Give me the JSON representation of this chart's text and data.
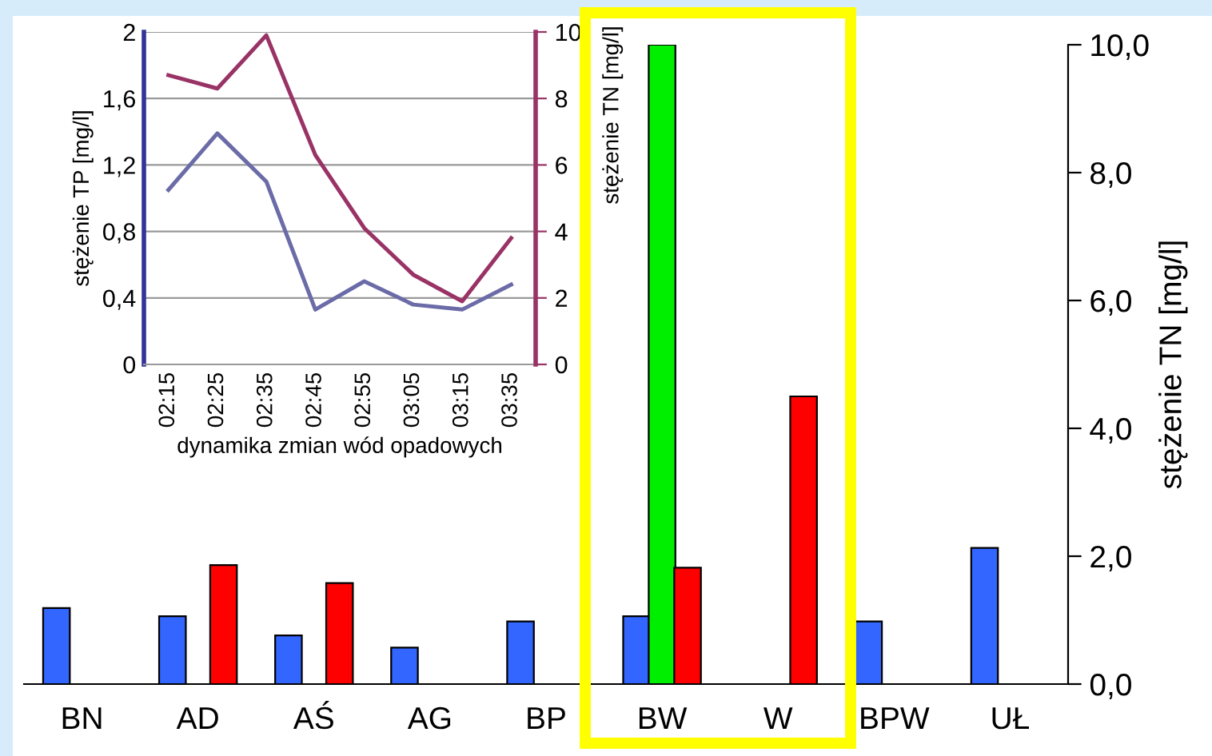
{
  "chart_data": [
    {
      "type": "bar",
      "categories": [
        "BN",
        "AD",
        "AŚ",
        "AG",
        "BP",
        "BW",
        "W",
        "BPW",
        "UŁ"
      ],
      "series": [
        {
          "color": "#3366ff",
          "axis": "y2",
          "values": [
            1.19,
            1.06,
            0.76,
            0.57,
            0.98,
            1.06,
            null,
            0.98,
            2.13
          ]
        },
        {
          "color": "#00ee00",
          "axis": "y2",
          "values": [
            null,
            null,
            null,
            null,
            null,
            10.0,
            null,
            null,
            null
          ]
        },
        {
          "color": "#ff0000",
          "axis": "y2",
          "values": [
            null,
            1.86,
            1.58,
            null,
            null,
            1.82,
            4.5,
            null,
            null
          ]
        }
      ],
      "y2label": "stężenie TN [mg/l]",
      "y2lim": [
        0,
        10
      ],
      "y2ticks": [
        {
          "value": 0,
          "label": "0,0"
        },
        {
          "value": 2,
          "label": "2,0"
        },
        {
          "value": 4,
          "label": "4,0"
        },
        {
          "value": 6,
          "label": "6,0"
        },
        {
          "value": 8,
          "label": "8,0"
        },
        {
          "value": 10,
          "label": "10,0"
        }
      ],
      "grid": false,
      "legend": false
    },
    {
      "type": "line",
      "categories": [
        "02:15",
        "02:25",
        "02:35",
        "02:45",
        "02:55",
        "03:05",
        "03:15",
        "03:35"
      ],
      "series": [
        {
          "color": "#6b6ba8",
          "values": [
            1.05,
            1.39,
            1.1,
            0.33,
            0.5,
            0.36,
            0.33,
            0.48
          ]
        },
        {
          "color": "#993366",
          "axis": "y2",
          "values": [
            8.7,
            8.3,
            9.9,
            6.3,
            4.1,
            2.7,
            1.9,
            3.8
          ]
        }
      ],
      "xlabel": "dynamika zmian wód opadowych",
      "ylabel": "stężenie TP [mg/l]",
      "y2label": "stężenie TN [mg/l]",
      "ylim": [
        0,
        2
      ],
      "yticks": [
        0,
        {
          "value": 0.4,
          "label": "0,4"
        },
        {
          "value": 0.8,
          "label": "0,8"
        },
        {
          "value": 1.2,
          "label": "1,2"
        },
        {
          "value": 1.6,
          "label": "1,6"
        },
        2
      ],
      "y2lim": [
        0,
        10
      ],
      "y2ticks": [
        0,
        2,
        4,
        6,
        8,
        10
      ],
      "grid": "y",
      "legend": false,
      "marker": "none",
      "line_style": "solid"
    }
  ]
}
